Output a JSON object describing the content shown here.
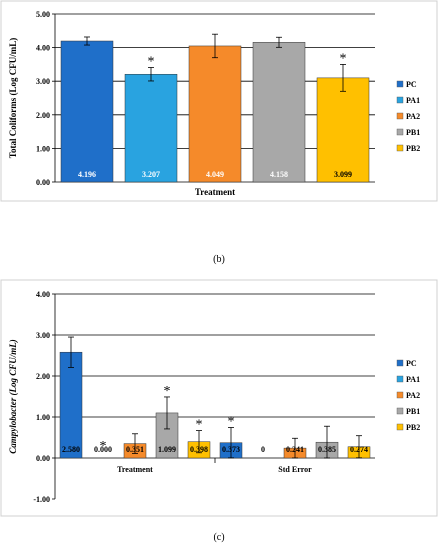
{
  "chart_data": [
    {
      "type": "bar",
      "panel_label": "(b)",
      "xlabel": "Treatment",
      "ylabel": "Total Coliforms (Log CFU/mL)",
      "ylim": [
        0,
        5
      ],
      "yticks": [
        "0.00",
        "1.00",
        "2.00",
        "3.00",
        "4.00",
        "5.00"
      ],
      "grid": true,
      "legend": "right",
      "series": [
        {
          "name": "PC",
          "color": "#1f6fc9",
          "value": 4.196,
          "label": "4.196",
          "error": 0.12,
          "star": false
        },
        {
          "name": "PA1",
          "color": "#29a3e0",
          "value": 3.207,
          "label": "3.207",
          "error": 0.2,
          "star": true
        },
        {
          "name": "PA2",
          "color": "#f58a2a",
          "value": 4.049,
          "label": "4.049",
          "error": 0.35,
          "star": false
        },
        {
          "name": "PB1",
          "color": "#a8a8a8",
          "value": 4.158,
          "label": "4.158",
          "error": 0.15,
          "star": false
        },
        {
          "name": "PB2",
          "color": "#ffc000",
          "value": 3.099,
          "label": "3.099",
          "error": 0.4,
          "star": true
        }
      ]
    },
    {
      "type": "bar",
      "panel_label": "(c)",
      "ylabel": "Campylobacter (Log CFU/mL)",
      "ylim": [
        -1,
        4
      ],
      "yticks": [
        "-1.00",
        "0.00",
        "1.00",
        "2.00",
        "3.00",
        "4.00"
      ],
      "grid": true,
      "legend": "right",
      "categories": [
        "Treatment",
        "Std Error"
      ],
      "series": [
        {
          "name": "PC",
          "color": "#1f6fc9",
          "values": [
            2.58,
            0.373
          ],
          "labels": [
            "2.580",
            "0.373"
          ],
          "errors": [
            0.37,
            0.37
          ],
          "stars": [
            false,
            true
          ]
        },
        {
          "name": "PA1",
          "color": "#29a3e0",
          "values": [
            0.0,
            0.0
          ],
          "labels": [
            "0.000",
            "0"
          ],
          "errors": [
            0,
            0
          ],
          "stars": [
            true,
            false
          ]
        },
        {
          "name": "PA2",
          "color": "#f58a2a",
          "values": [
            0.351,
            0.241
          ],
          "labels": [
            "0.351",
            "0.241"
          ],
          "errors": [
            0.24,
            0.24
          ],
          "stars": [
            false,
            false
          ]
        },
        {
          "name": "PB1",
          "color": "#a8a8a8",
          "values": [
            1.099,
            0.385
          ],
          "labels": [
            "1.099",
            "0.385"
          ],
          "errors": [
            0.39,
            0.39
          ],
          "stars": [
            true,
            false
          ]
        },
        {
          "name": "PB2",
          "color": "#ffc000",
          "values": [
            0.398,
            0.274
          ],
          "labels": [
            "0.398",
            "0.274"
          ],
          "errors": [
            0.27,
            0.27
          ],
          "stars": [
            true,
            false
          ]
        }
      ]
    }
  ]
}
